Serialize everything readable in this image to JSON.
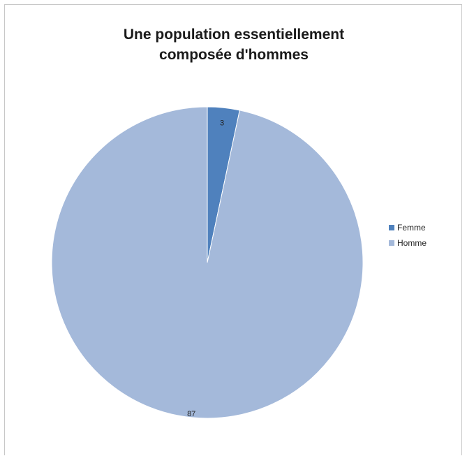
{
  "chart_data": {
    "type": "pie",
    "title_lines": [
      "Une population essentiellement",
      "composée d'hommes"
    ],
    "slices": [
      {
        "name": "Femme",
        "value": 3,
        "color": "#4f81bd"
      },
      {
        "name": "Homme",
        "value": 87,
        "color": "#a4b9da"
      }
    ],
    "legend_position": "right",
    "data_labels": true,
    "start_angle_deg": 0,
    "direction": "clockwise"
  }
}
